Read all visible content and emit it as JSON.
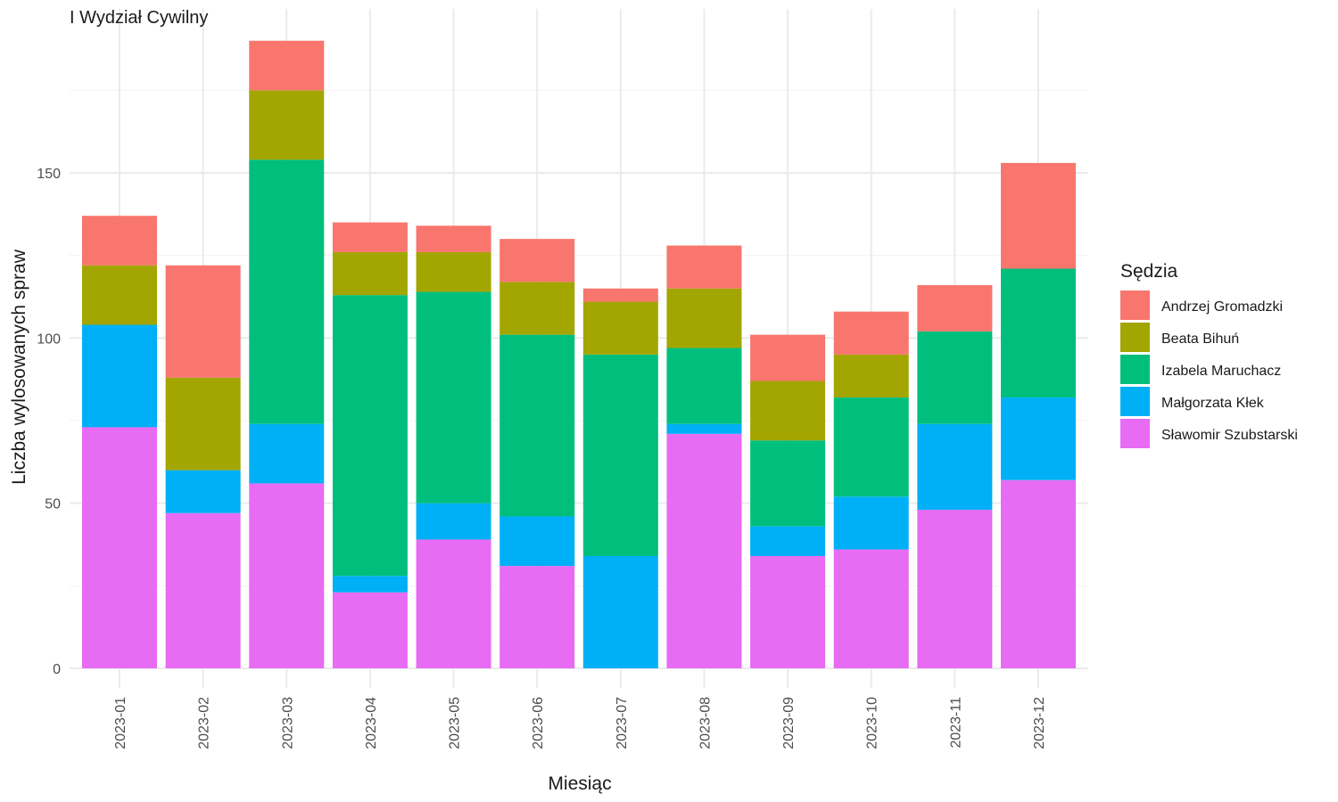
{
  "chart_data": {
    "type": "bar",
    "stacked": true,
    "title": "I Wydział Cywilny",
    "xlabel": "Miesiąc",
    "ylabel": "Liczba wylosowanych spraw",
    "ylim": [
      0,
      190
    ],
    "yticks": [
      0,
      50,
      100,
      150
    ],
    "grid": true,
    "legend_title": "Sędzia",
    "legend_position": "right",
    "categories": [
      "2023-01",
      "2023-02",
      "2023-03",
      "2023-04",
      "2023-05",
      "2023-06",
      "2023-07",
      "2023-08",
      "2023-09",
      "2023-10",
      "2023-11",
      "2023-12"
    ],
    "series": [
      {
        "name": "Sławomir Szubstarski",
        "color": "#E76BF3",
        "values": [
          73,
          47,
          56,
          23,
          39,
          31,
          0,
          71,
          34,
          36,
          48,
          57
        ]
      },
      {
        "name": "Małgorzata Kłek",
        "color": "#00B0F6",
        "values": [
          31,
          13,
          18,
          5,
          11,
          15,
          34,
          3,
          9,
          16,
          26,
          25
        ]
      },
      {
        "name": "Izabela Maruchacz",
        "color": "#00BF7D",
        "values": [
          0,
          0,
          80,
          85,
          64,
          55,
          61,
          23,
          26,
          30,
          28,
          39
        ]
      },
      {
        "name": "Beata Bihuń",
        "color": "#A3A500",
        "values": [
          18,
          28,
          21,
          13,
          12,
          16,
          16,
          18,
          18,
          13,
          0,
          0
        ]
      },
      {
        "name": "Andrzej Gromadzki",
        "color": "#F8766D",
        "values": [
          15,
          34,
          15,
          9,
          8,
          13,
          4,
          13,
          14,
          13,
          14,
          32
        ]
      }
    ],
    "legend_order": [
      "Andrzej Gromadzki",
      "Beata Bihuń",
      "Izabela Maruchacz",
      "Małgorzata Kłek",
      "Sławomir Szubstarski"
    ]
  }
}
